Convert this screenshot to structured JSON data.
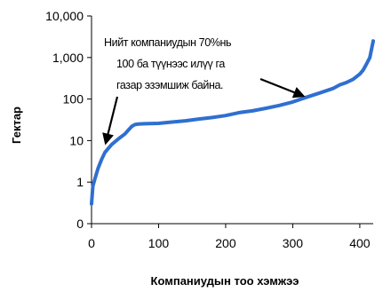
{
  "chart_data": {
    "type": "line",
    "xlabel": "Компаниудын тоо хэмжээ",
    "ylabel": "Гектар",
    "xlim": [
      0,
      420
    ],
    "ylim": [
      0.1,
      10000
    ],
    "y_scale": "log",
    "grid": false,
    "line_color": "#2f6fd0",
    "x_ticks": [
      0,
      100,
      200,
      300,
      400
    ],
    "x_tick_labels": [
      "0",
      "100",
      "200",
      "300",
      "400"
    ],
    "y_ticks": [
      0.1,
      1,
      10,
      100,
      1000,
      10000
    ],
    "y_tick_labels": [
      "0",
      "1",
      "10",
      "100",
      "1,000",
      "10,000"
    ],
    "annotation": {
      "lines": [
        "Нийт компаниудын 70%нь",
        "100 ба түүнээс илүү га",
        "газар эзэмшиж байна."
      ]
    },
    "series": [
      {
        "x": [
          0,
          2,
          5,
          10,
          15,
          20,
          25,
          30,
          40,
          50,
          55,
          60,
          65,
          70,
          80,
          100,
          120,
          140,
          160,
          180,
          200,
          220,
          240,
          260,
          280,
          300,
          320,
          340,
          360,
          370,
          380,
          390,
          400,
          405,
          410,
          415,
          420
        ],
        "y": [
          0.3,
          0.8,
          1.2,
          2.2,
          3.5,
          5.2,
          6.5,
          8,
          11,
          14.5,
          18,
          22,
          24.5,
          25,
          25.5,
          26,
          28,
          30,
          33,
          36,
          40,
          47,
          52,
          60,
          70,
          85,
          110,
          140,
          180,
          220,
          250,
          300,
          400,
          500,
          700,
          1000,
          2500
        ]
      }
    ]
  }
}
